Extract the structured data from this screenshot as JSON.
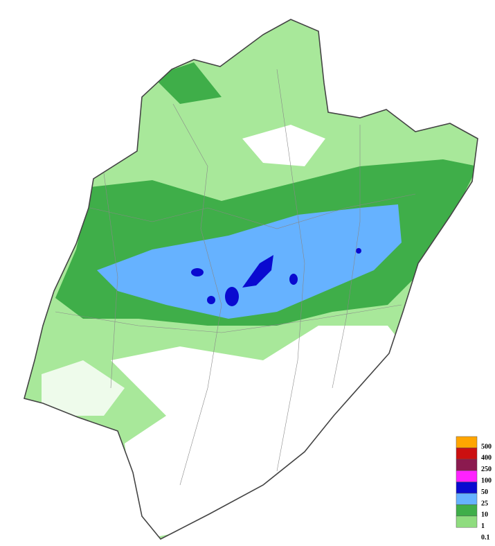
{
  "legend": {
    "items": [
      {
        "label": "500",
        "color": "#ffa500"
      },
      {
        "label": "400",
        "color": "#cc1010"
      },
      {
        "label": "250",
        "color": "#8b1a4f"
      },
      {
        "label": "100",
        "color": "#ff22ff"
      },
      {
        "label": "50",
        "color": "#0a0ad0"
      },
      {
        "label": "25",
        "color": "#66b2ff"
      },
      {
        "label": "10",
        "color": "#3fae49"
      },
      {
        "label": "1",
        "color": "#8fdc7f"
      },
      {
        "label": "0.1"
      }
    ]
  }
}
